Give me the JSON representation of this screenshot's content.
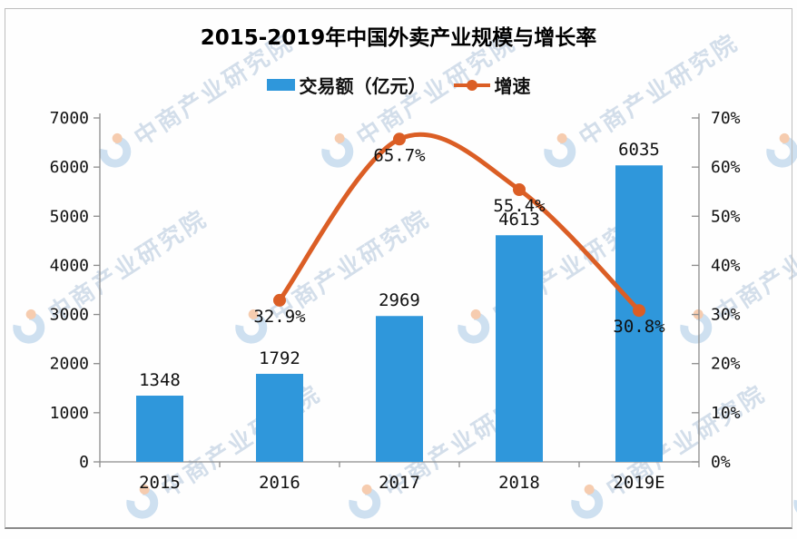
{
  "title": "2015-2019年中国外卖产业规模与增长率",
  "legend": {
    "items": [
      {
        "label": "交易额（亿元）",
        "marker": "bar",
        "color": "#2F97DB"
      },
      {
        "label": "增速",
        "marker": "line",
        "color": "#DB5E25"
      }
    ]
  },
  "watermark": {
    "text": "中商产业研究院",
    "text_color": "#a9bfd8",
    "logo_blue": "#9fc3e4",
    "logo_orange": "#ef9c63"
  },
  "chart_data": {
    "type": "bar",
    "subtype": "bar+line combo, dual axis",
    "title": "2015-2019年中国外卖产业规模与增长率",
    "categories": [
      "2015",
      "2016",
      "2017",
      "2018",
      "2019E"
    ],
    "series": [
      {
        "name": "交易额（亿元）",
        "type": "bar",
        "axis": "left",
        "color": "#2F97DB",
        "values": [
          1348,
          1792,
          2969,
          4613,
          6035
        ],
        "data_labels": [
          "1348",
          "1792",
          "2969",
          "4613",
          "6035"
        ]
      },
      {
        "name": "增速",
        "type": "line",
        "axis": "right",
        "color": "#DB5E25",
        "values": [
          null,
          32.9,
          65.7,
          55.4,
          30.8
        ],
        "data_labels": [
          null,
          "32.9%",
          "65.7%",
          "55.4%",
          "30.8%"
        ]
      }
    ],
    "left_axis": {
      "min": 0,
      "max": 7000,
      "step": 1000,
      "tick_labels": [
        "0",
        "1000",
        "2000",
        "3000",
        "4000",
        "5000",
        "6000",
        "7000"
      ]
    },
    "right_axis": {
      "min": 0,
      "max": 70,
      "step": 10,
      "tick_labels": [
        "0%",
        "10%",
        "20%",
        "30%",
        "40%",
        "50%",
        "60%",
        "70%"
      ]
    },
    "grid": false,
    "legend_position": "top",
    "smooth_line": true
  }
}
